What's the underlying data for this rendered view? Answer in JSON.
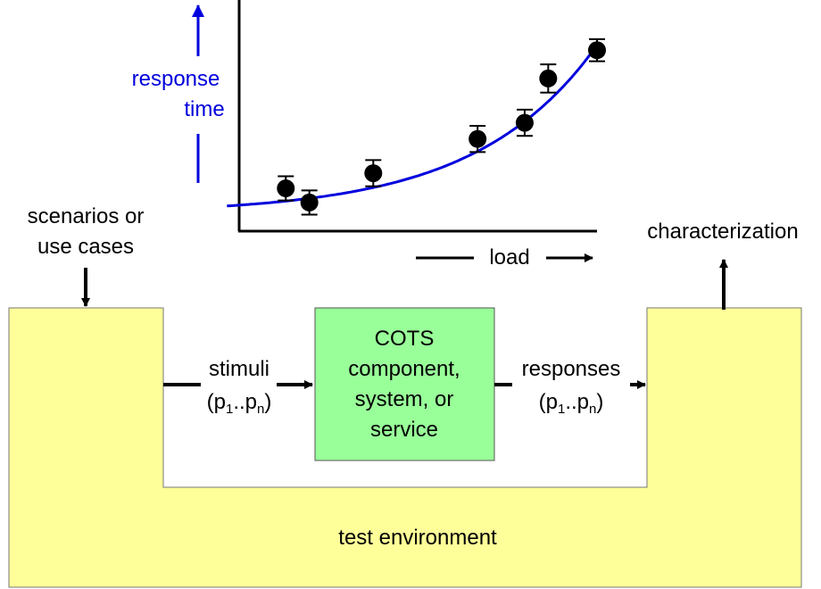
{
  "colors": {
    "environment_fill": "#ffff99",
    "component_fill": "#99ff99",
    "curve": "#0000dd",
    "axis_label": "#0000dd",
    "arrow": "#000000"
  },
  "inputs": {
    "line1": "scenarios or",
    "line2": "use cases"
  },
  "output": {
    "label": "characterization"
  },
  "stimuli": {
    "label": "stimuli",
    "param_open": "(p",
    "param_sub1": "1",
    "param_dots": "..p",
    "param_subn": "n",
    "param_close": ")"
  },
  "component": {
    "line1": "COTS",
    "line2": "component,",
    "line3": "system, or",
    "line4": "service"
  },
  "responses": {
    "label": "responses",
    "param_open": "(p",
    "param_sub1": "1",
    "param_dots": "..p",
    "param_subn": "n",
    "param_close": ")"
  },
  "environment": {
    "label": "test environment"
  },
  "chart_data": {
    "type": "scatter",
    "xlabel": "load",
    "ylabel": "response time",
    "xlim": [
      0,
      10
    ],
    "ylim": [
      0,
      10
    ],
    "grid": false,
    "x": [
      0.75,
      1.45,
      3.35,
      6.45,
      7.85,
      8.55,
      10.0
    ],
    "y": [
      1.9,
      1.2,
      2.65,
      4.35,
      5.15,
      7.35,
      8.75
    ],
    "error": [
      0.6,
      0.6,
      0.65,
      0.65,
      0.65,
      0.7,
      0.55
    ],
    "fit_curve": {
      "kind": "exponential",
      "at_x0": 1.15,
      "at_x10": 9.0
    }
  }
}
